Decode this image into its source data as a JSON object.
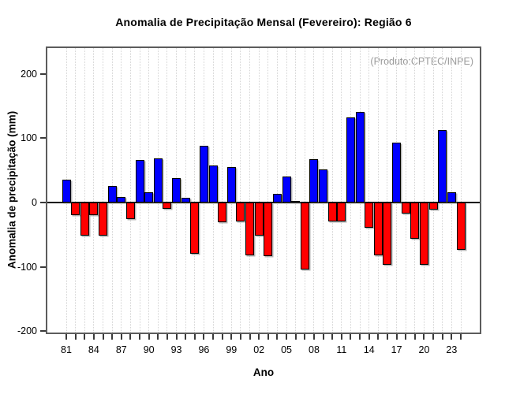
{
  "chart_data": {
    "type": "bar",
    "title": "Anomalia de Precipitação Mensal (Fevereiro): Região 6",
    "annotation": "(Produto:CPTEC/INPE)",
    "xlabel": "Ano",
    "ylabel": "Anomalia de precipitação (mm)",
    "x": [
      1981,
      1982,
      1983,
      1984,
      1985,
      1986,
      1987,
      1988,
      1989,
      1990,
      1991,
      1992,
      1993,
      1994,
      1995,
      1996,
      1997,
      1998,
      1999,
      2000,
      2001,
      2002,
      2003,
      2004,
      2005,
      2006,
      2007,
      2008,
      2009,
      2010,
      2011,
      2012,
      2013,
      2014,
      2015,
      2016,
      2017,
      2018,
      2019,
      2020,
      2021,
      2022,
      2023,
      2024
    ],
    "values": [
      35,
      -19,
      -51,
      -20,
      -52,
      26,
      9,
      -26,
      66,
      16,
      69,
      -10,
      38,
      7,
      -80,
      88,
      58,
      -31,
      55,
      -29,
      -82,
      -52,
      -83,
      13,
      41,
      2,
      -104,
      67,
      52,
      -29,
      -29,
      132,
      141,
      -39,
      -82,
      -97,
      93,
      -17,
      -56,
      -97,
      -11,
      113,
      16,
      -73
    ],
    "xtick_labels": [
      "81",
      "84",
      "87",
      "90",
      "93",
      "96",
      "99",
      "02",
      "05",
      "08",
      "11",
      "14",
      "17",
      "20",
      "23"
    ],
    "xtick_label_step": 3,
    "yticks": [
      200,
      100,
      0,
      -100,
      -200
    ],
    "ylim": [
      -202,
      240
    ],
    "grid": {
      "vertical": true,
      "style": "dotted",
      "color": "#d4d4d4"
    },
    "colors": {
      "positive": "#0000ff",
      "negative": "#ff0000",
      "bar_border": "#000000",
      "annotation": "#9a9a9a",
      "frame": "#5c5c5c"
    },
    "legend": null
  }
}
